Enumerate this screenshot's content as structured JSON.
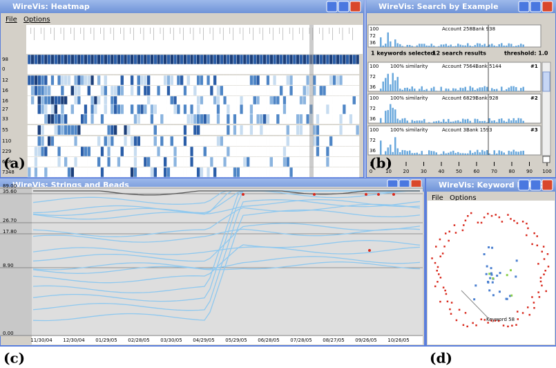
{
  "heatmap": {
    "title": "WireVis: Heatmap",
    "menu": [
      "File",
      "Options"
    ],
    "row_labels": [
      98,
      0,
      12,
      16,
      16,
      27,
      33,
      55,
      110,
      229,
      688,
      7348
    ],
    "panel_label": "(a)"
  },
  "search": {
    "title": "WireVis: Search by Example",
    "query": "Account 258Bank 938",
    "status": [
      "1 keywords selected",
      "12 search results",
      "threshold: 1.0"
    ],
    "mini_axis": [
      100,
      72,
      36
    ],
    "results": [
      {
        "similarity": "100% similarity",
        "account": "Account 7564Bank 5144",
        "rank": "#1"
      },
      {
        "similarity": "100% similarity",
        "account": "Account 6829Bank 928",
        "rank": "#2"
      },
      {
        "similarity": "100% similarity",
        "account": "Account 3Bank 1593",
        "rank": "#3"
      }
    ],
    "slider_ticks": [
      0,
      10,
      20,
      30,
      40,
      50,
      60,
      70,
      80,
      90,
      100
    ],
    "panel_label": "(b)"
  },
  "strings": {
    "title": "WireVis: Strings and Beads",
    "menu": [
      "File",
      "Options"
    ],
    "y_labels": [
      "89.00",
      "35.60",
      "26.70",
      "17.80",
      "8.90",
      "0.00"
    ],
    "x_labels": [
      "11/30/04",
      "12/30/04",
      "01/29/05",
      "02/28/05",
      "03/30/05",
      "04/29/05",
      "05/29/05",
      "06/28/05",
      "07/28/05",
      "08/27/05",
      "09/26/05",
      "10/26/05"
    ],
    "panel_label": "(c)"
  },
  "network": {
    "title": "WireVis: Keyword Network",
    "menu": [
      "File",
      "Options"
    ],
    "keyword": "Keyword 58",
    "panel_label": "(d)"
  }
}
